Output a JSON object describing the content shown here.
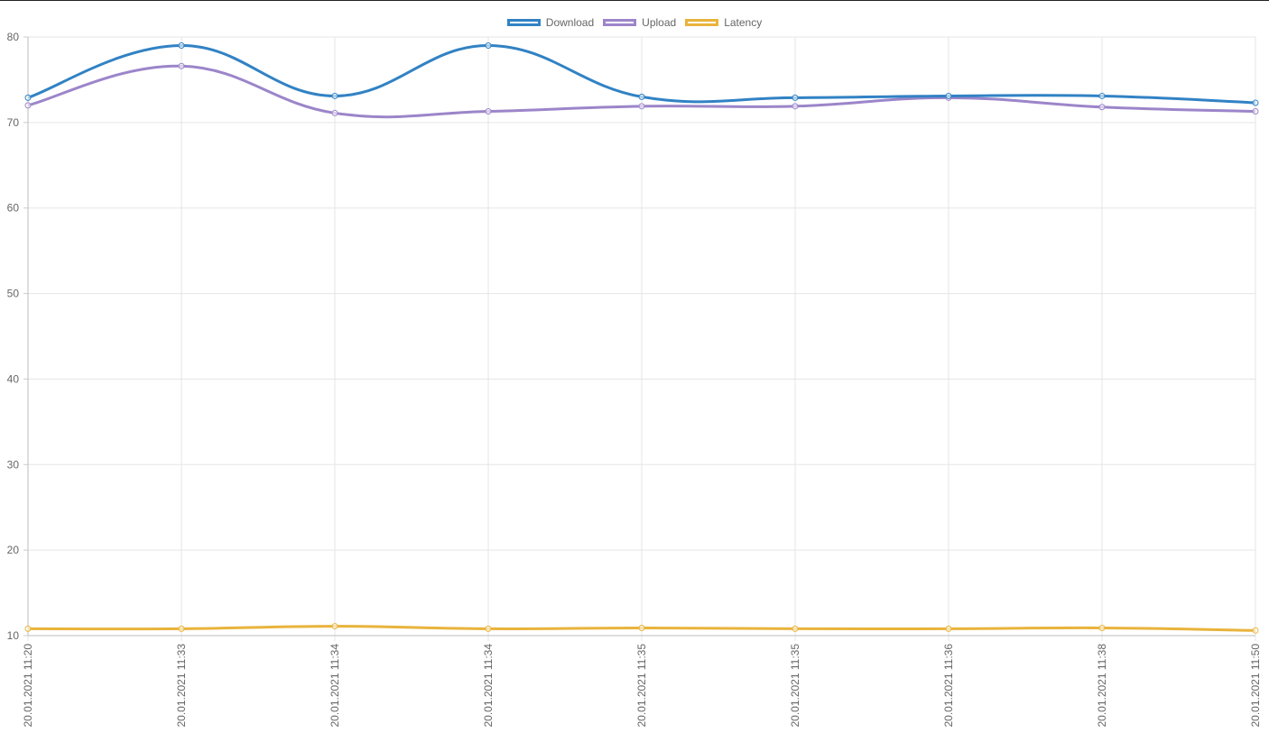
{
  "chart_data": {
    "type": "line",
    "categories": [
      "20.01.2021 11:20",
      "20.01.2021 11:33",
      "20.01.2021 11:34",
      "20.01.2021 11:34",
      "20.01.2021 11:35",
      "20.01.2021 11:35",
      "20.01.2021 11:36",
      "20.01.2021 11:38",
      "20.01.2021 11:50"
    ],
    "series": [
      {
        "name": "Download",
        "color": "#3182c4",
        "values": [
          72.9,
          79.0,
          73.1,
          79.0,
          73.0,
          72.9,
          73.1,
          73.1,
          72.3
        ]
      },
      {
        "name": "Upload",
        "color": "#9c85c9",
        "values": [
          72.0,
          76.6,
          71.1,
          71.3,
          71.9,
          71.9,
          72.9,
          71.8,
          71.3
        ]
      },
      {
        "name": "Latency",
        "color": "#e9b33b",
        "values": [
          10.8,
          10.8,
          11.1,
          10.8,
          10.9,
          10.8,
          10.8,
          10.9,
          10.6
        ]
      }
    ],
    "title": "",
    "xlabel": "",
    "ylabel": "",
    "ylim": [
      10,
      80
    ],
    "yticks": [
      10,
      20,
      30,
      40,
      50,
      60,
      70,
      80
    ],
    "grid": true,
    "legend_position": "top"
  }
}
